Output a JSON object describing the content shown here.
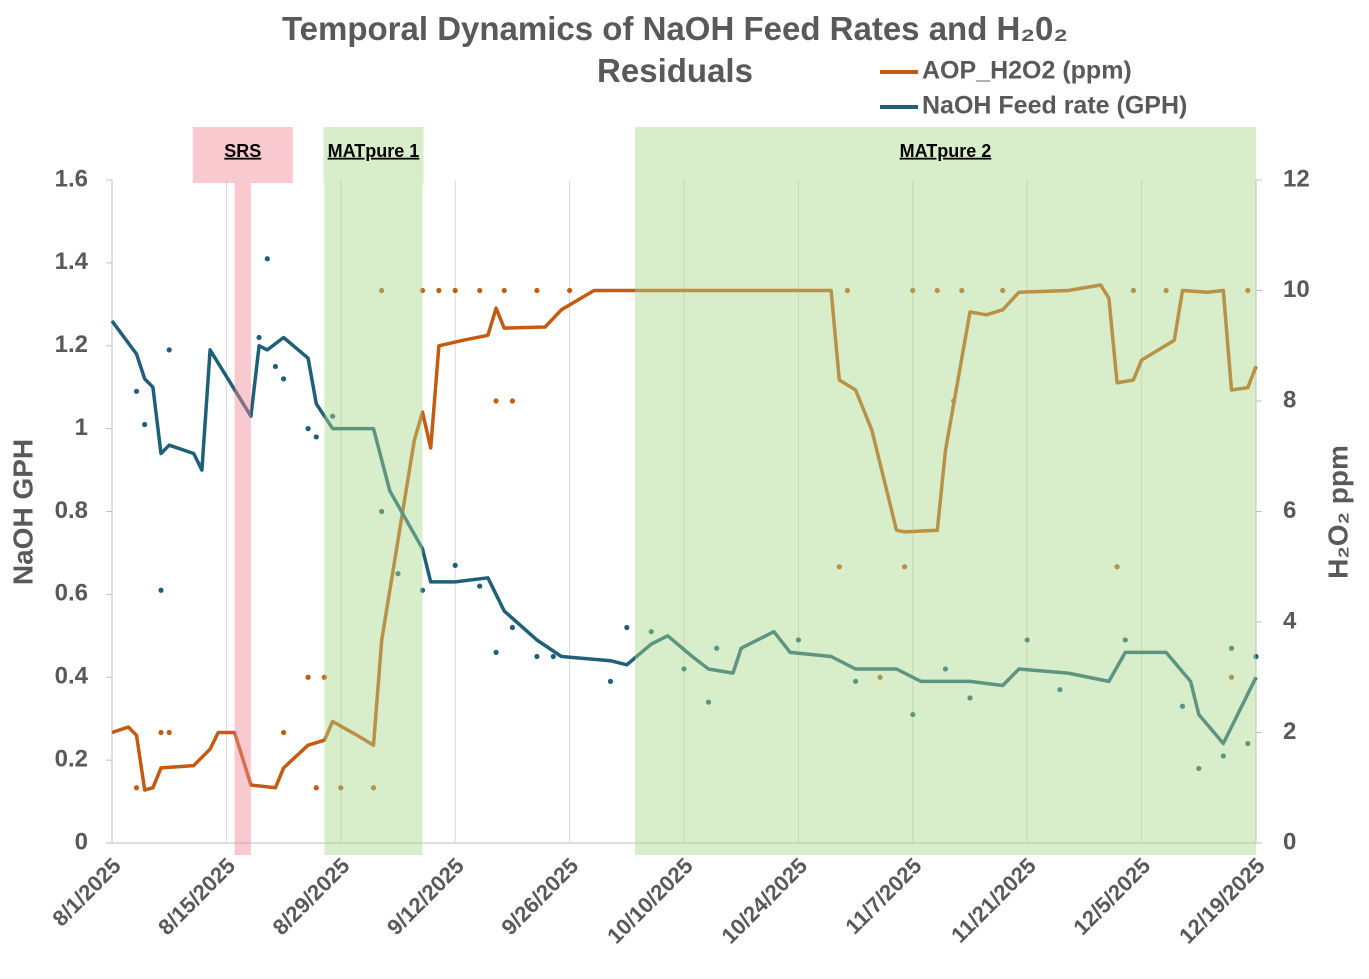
{
  "chart_data": {
    "type": "line",
    "title": "Temporal Dynamics of NaOH Feed Rates and H₂0₂ Residuals",
    "y_label": "NaOH GPH",
    "y2_label": "H₂O₂ ppm",
    "xlim": [
      "8/1/2025",
      "12/19/2025"
    ],
    "xticks": [
      "8/1/2025",
      "8/15/2025",
      "8/29/2025",
      "9/12/2025",
      "9/26/2025",
      "10/10/2025",
      "10/24/2025",
      "11/7/2025",
      "11/21/2025",
      "12/5/2025",
      "12/19/2025"
    ],
    "ylim": [
      0,
      1.6
    ],
    "yticks": [
      0,
      0.2,
      0.4,
      0.6,
      0.8,
      1,
      1.2,
      1.4,
      1.6
    ],
    "y2lim": [
      0,
      12
    ],
    "y2ticks": [
      0,
      2,
      4,
      6,
      8,
      10,
      12
    ],
    "grid": true,
    "regions": [
      {
        "label": "SRS",
        "start": "8/16/2025",
        "end": "8/18/2025",
        "color": "#f08a94"
      },
      {
        "label": "MATpure 1",
        "start": "8/27/2025",
        "end": "9/8/2025",
        "color": "#a9d88a"
      },
      {
        "label": "MATpure 2",
        "start": "10/4/2025",
        "end": "12/19/2025",
        "color": "#a9d88a"
      }
    ],
    "series": [
      {
        "name": "AOP_H2O2 (ppm)",
        "color": "#c55a11",
        "axis": "y2",
        "x": [
          "8/1/2025",
          "8/3/2025",
          "8/4/2025",
          "8/5/2025",
          "8/6/2025",
          "8/7/2025",
          "8/11/2025",
          "8/13/2025",
          "8/14/2025",
          "8/16/2025",
          "8/18/2025",
          "8/21/2025",
          "8/22/2025",
          "8/25/2025",
          "8/27/2025",
          "8/28/2025",
          "8/31/2025",
          "9/2/2025",
          "9/3/2025",
          "9/5/2025",
          "9/7/2025",
          "9/8/2025",
          "9/9/2025",
          "9/10/2025",
          "9/13/2025",
          "9/16/2025",
          "9/17/2025",
          "9/18/2025",
          "9/23/2025",
          "9/25/2025",
          "9/29/2025",
          "10/28/2025",
          "10/29/2025",
          "10/31/2025",
          "11/2/2025",
          "11/5/2025",
          "11/6/2025",
          "11/10/2025",
          "11/11/2025",
          "11/14/2025",
          "11/16/2025",
          "11/18/2025",
          "11/20/2025",
          "11/26/2025",
          "11/30/2025",
          "12/1/2025",
          "12/2/2025",
          "12/4/2025",
          "12/5/2025",
          "12/9/2025",
          "12/10/2025",
          "12/13/2025",
          "12/15/2025",
          "12/16/2025",
          "12/18/2025",
          "12/19/2025"
        ],
        "values": [
          2.0,
          2.1,
          1.95,
          0.96,
          1.0,
          1.36,
          1.4,
          1.7,
          2.0,
          2.0,
          1.05,
          1.0,
          1.36,
          1.77,
          1.86,
          2.2,
          1.95,
          1.77,
          3.67,
          5.48,
          7.29,
          7.8,
          7.15,
          9.0,
          9.1,
          9.19,
          9.68,
          9.32,
          9.34,
          9.65,
          10.0,
          10.0,
          8.38,
          8.2,
          7.47,
          5.66,
          5.63,
          5.66,
          7.11,
          9.61,
          9.56,
          9.65,
          9.97,
          10.0,
          10.1,
          9.86,
          8.33,
          8.38,
          8.74,
          9.1,
          10.0,
          9.97,
          10.0,
          8.2,
          8.24,
          8.63
        ],
        "points_x": [
          "8/4/2025",
          "8/7/2025",
          "8/8/2025",
          "8/22/2025",
          "8/25/2025",
          "8/26/2025",
          "8/27/2025",
          "8/29/2025",
          "9/2/2025",
          "9/3/2025",
          "9/8/2025",
          "9/10/2025",
          "9/12/2025",
          "9/15/2025",
          "9/17/2025",
          "9/19/2025",
          "9/18/2025",
          "9/22/2025",
          "9/26/2025",
          "10/29/2025",
          "10/30/2025",
          "11/3/2025",
          "11/6/2025",
          "11/7/2025",
          "11/10/2025",
          "11/12/2025",
          "11/13/2025",
          "11/18/2025",
          "12/2/2025",
          "12/4/2025",
          "12/8/2025",
          "12/16/2025",
          "12/18/2025"
        ],
        "points": [
          1,
          2,
          2,
          2,
          3,
          1,
          3,
          1,
          1,
          10,
          10,
          10,
          10,
          10,
          8,
          8,
          10,
          10,
          10,
          5,
          10,
          3,
          5,
          10,
          10,
          8,
          10,
          10,
          5,
          10,
          10,
          3,
          10
        ]
      },
      {
        "name": "NaOH Feed rate (GPH)",
        "color": "#1f5f7a",
        "x": [
          "8/1/2025",
          "8/4/2025",
          "8/5/2025",
          "8/6/2025",
          "8/7/2025",
          "8/8/2025",
          "8/11/2025",
          "8/12/2025",
          "8/13/2025",
          "8/18/2025",
          "8/19/2025",
          "8/20/2025",
          "8/22/2025",
          "8/25/2025",
          "8/26/2025",
          "8/28/2025",
          "9/2/2025",
          "9/4/2025",
          "9/8/2025",
          "9/9/2025",
          "9/12/2025",
          "9/16/2025",
          "9/18/2025",
          "9/22/2025",
          "9/25/2025",
          "10/1/2025",
          "10/3/2025",
          "10/6/2025",
          "10/8/2025",
          "10/11/2025",
          "10/13/2025",
          "10/16/2025",
          "10/17/2025",
          "10/21/2025",
          "10/23/2025",
          "10/28/2025",
          "10/31/2025",
          "11/5/2025",
          "11/8/2025",
          "11/14/2025",
          "11/18/2025",
          "11/20/2025",
          "11/26/2025",
          "12/1/2025",
          "12/3/2025",
          "12/8/2025",
          "12/11/2025",
          "12/12/2025",
          "12/15/2025",
          "12/17/2025",
          "12/19/2025"
        ],
        "values": [
          1.26,
          1.18,
          1.12,
          1.1,
          0.94,
          0.96,
          0.94,
          0.9,
          1.19,
          1.03,
          1.2,
          1.19,
          1.22,
          1.17,
          1.06,
          1.0,
          1.0,
          0.85,
          0.71,
          0.63,
          0.63,
          0.64,
          0.56,
          0.49,
          0.45,
          0.44,
          0.43,
          0.48,
          0.5,
          0.45,
          0.42,
          0.41,
          0.47,
          0.51,
          0.46,
          0.45,
          0.42,
          0.42,
          0.39,
          0.39,
          0.38,
          0.42,
          0.41,
          0.39,
          0.46,
          0.46,
          0.39,
          0.31,
          0.24,
          0.32,
          0.4
        ],
        "points_x": [
          "8/4/2025",
          "8/5/2025",
          "8/7/2025",
          "8/8/2025",
          "8/20/2025",
          "8/19/2025",
          "8/21/2025",
          "8/22/2025",
          "8/25/2025",
          "8/26/2025",
          "8/28/2025",
          "9/3/2025",
          "9/5/2025",
          "9/8/2025",
          "9/12/2025",
          "9/15/2025",
          "9/17/2025",
          "9/19/2025",
          "9/22/2025",
          "9/24/2025",
          "10/1/2025",
          "10/3/2025",
          "10/6/2025",
          "10/10/2025",
          "10/13/2025",
          "10/14/2025",
          "10/24/2025",
          "10/31/2025",
          "11/7/2025",
          "11/11/2025",
          "11/14/2025",
          "11/21/2025",
          "11/25/2025",
          "12/3/2025",
          "12/10/2025",
          "12/12/2025",
          "12/15/2025",
          "12/16/2025",
          "12/18/2025",
          "12/19/2025"
        ],
        "points": [
          1.09,
          1.01,
          0.61,
          1.19,
          1.41,
          1.22,
          1.15,
          1.12,
          1.0,
          0.98,
          1.03,
          0.8,
          0.65,
          0.61,
          0.67,
          0.62,
          0.46,
          0.52,
          0.45,
          0.45,
          0.39,
          0.52,
          0.51,
          0.42,
          0.34,
          0.47,
          0.49,
          0.39,
          0.31,
          0.42,
          0.35,
          0.49,
          0.37,
          0.49,
          0.33,
          0.18,
          0.21,
          0.47,
          0.24,
          0.45
        ]
      }
    ]
  }
}
